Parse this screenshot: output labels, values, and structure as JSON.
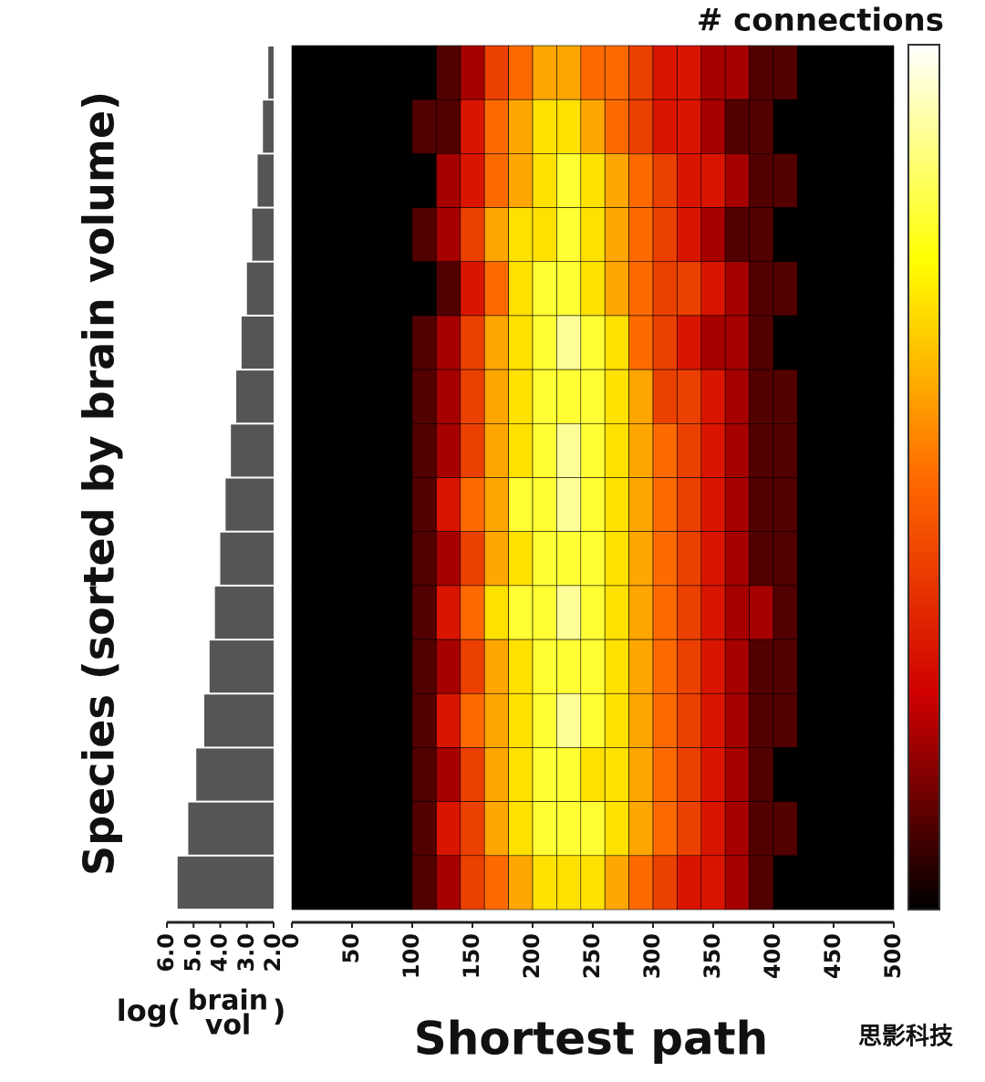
{
  "chart_data": [
    {
      "type": "heatmap",
      "title": "# connections",
      "xlabel": "Shortest path",
      "ylabel": "Species (sorted by brain volume)",
      "xlim": [
        0,
        500
      ],
      "xticks": [
        0,
        50,
        100,
        150,
        200,
        250,
        300,
        350,
        400,
        450,
        500
      ],
      "xbins": [
        0,
        20,
        40,
        60,
        80,
        100,
        120,
        140,
        160,
        180,
        200,
        220,
        240,
        260,
        280,
        300,
        320,
        340,
        360,
        380,
        400,
        420,
        440,
        460,
        480,
        500
      ],
      "zlim": [
        0,
        10
      ],
      "colorscale": [
        "#000000",
        "#d00000",
        "#ff6a00",
        "#ffff00",
        "#ffffff"
      ],
      "z": [
        [
          0,
          0,
          0,
          0,
          0,
          0,
          1,
          2,
          4,
          5,
          6,
          6,
          5,
          5,
          4,
          3,
          3,
          2,
          2,
          1,
          1,
          0,
          0,
          0,
          0
        ],
        [
          0,
          0,
          0,
          0,
          0,
          1,
          1,
          3,
          5,
          6,
          7,
          7,
          6,
          5,
          4,
          3,
          3,
          2,
          1,
          1,
          0,
          0,
          0,
          0,
          0
        ],
        [
          0,
          0,
          0,
          0,
          0,
          0,
          2,
          3,
          5,
          6,
          7,
          8,
          7,
          6,
          5,
          4,
          3,
          3,
          2,
          1,
          1,
          0,
          0,
          0,
          0
        ],
        [
          0,
          0,
          0,
          0,
          0,
          1,
          2,
          4,
          6,
          7,
          7,
          8,
          7,
          6,
          5,
          4,
          3,
          2,
          1,
          1,
          0,
          0,
          0,
          0,
          0
        ],
        [
          0,
          0,
          0,
          0,
          0,
          0,
          1,
          3,
          5,
          7,
          8,
          8,
          7,
          6,
          5,
          4,
          4,
          3,
          2,
          1,
          1,
          0,
          0,
          0,
          0
        ],
        [
          0,
          0,
          0,
          0,
          0,
          1,
          2,
          4,
          6,
          7,
          8,
          9,
          8,
          7,
          5,
          4,
          3,
          2,
          2,
          1,
          0,
          0,
          0,
          0,
          0
        ],
        [
          0,
          0,
          0,
          0,
          0,
          1,
          2,
          4,
          6,
          7,
          8,
          8,
          8,
          7,
          6,
          4,
          4,
          3,
          2,
          1,
          1,
          0,
          0,
          0,
          0
        ],
        [
          0,
          0,
          0,
          0,
          0,
          1,
          2,
          4,
          6,
          7,
          8,
          9,
          8,
          7,
          6,
          5,
          4,
          3,
          2,
          1,
          1,
          0,
          0,
          0,
          0
        ],
        [
          0,
          0,
          0,
          0,
          0,
          1,
          3,
          5,
          6,
          8,
          8,
          9,
          8,
          7,
          6,
          5,
          4,
          3,
          2,
          1,
          1,
          0,
          0,
          0,
          0
        ],
        [
          0,
          0,
          0,
          0,
          0,
          1,
          2,
          4,
          6,
          7,
          8,
          8,
          8,
          7,
          6,
          5,
          4,
          3,
          2,
          1,
          1,
          0,
          0,
          0,
          0
        ],
        [
          0,
          0,
          0,
          0,
          0,
          1,
          3,
          5,
          7,
          8,
          8,
          9,
          8,
          7,
          6,
          5,
          4,
          3,
          2,
          2,
          1,
          0,
          0,
          0,
          0
        ],
        [
          0,
          0,
          0,
          0,
          0,
          1,
          2,
          4,
          6,
          7,
          8,
          8,
          8,
          7,
          6,
          5,
          4,
          3,
          2,
          1,
          1,
          0,
          0,
          0,
          0
        ],
        [
          0,
          0,
          0,
          0,
          0,
          1,
          3,
          5,
          6,
          7,
          8,
          9,
          8,
          7,
          6,
          5,
          4,
          3,
          2,
          1,
          1,
          0,
          0,
          0,
          0
        ],
        [
          0,
          0,
          0,
          0,
          0,
          1,
          2,
          4,
          6,
          7,
          8,
          8,
          7,
          7,
          6,
          5,
          4,
          3,
          2,
          1,
          0,
          0,
          0,
          0,
          0
        ],
        [
          0,
          0,
          0,
          0,
          0,
          1,
          3,
          4,
          6,
          7,
          8,
          8,
          8,
          7,
          6,
          5,
          4,
          3,
          2,
          1,
          1,
          0,
          0,
          0,
          0
        ],
        [
          0,
          0,
          0,
          0,
          0,
          1,
          2,
          4,
          5,
          6,
          7,
          7,
          7,
          6,
          5,
          4,
          3,
          3,
          2,
          1,
          0,
          0,
          0,
          0,
          0
        ]
      ]
    },
    {
      "type": "hbar",
      "xlabel": [
        "log(",
        "brain",
        "vol",
        ")"
      ],
      "xlim": [
        6,
        2
      ],
      "xticks": [
        {
          "value": 6,
          "label": "6.0"
        },
        {
          "value": 5,
          "label": "5.0"
        },
        {
          "value": 4,
          "label": "4.0"
        },
        {
          "value": 3,
          "label": "3.0"
        },
        {
          "value": 2,
          "label": "2.0"
        }
      ],
      "color": "#555555",
      "values": [
        2.2,
        2.4,
        2.6,
        2.8,
        3.0,
        3.2,
        3.4,
        3.6,
        3.8,
        4.0,
        4.2,
        4.4,
        4.6,
        4.9,
        5.2,
        5.6
      ]
    },
    {
      "type": "note",
      "text": "思影科技"
    }
  ]
}
